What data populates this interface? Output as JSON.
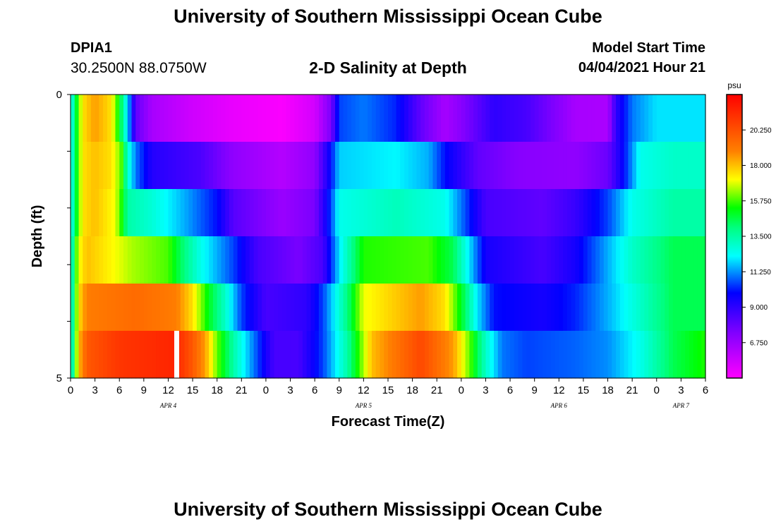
{
  "header": {
    "title": "University of Southern Mississippi Ocean Cube",
    "station_id": "DPIA1",
    "station_coords": "30.2500N  88.0750W",
    "model_start_label": "Model Start Time",
    "model_start_value": "04/04/2021 Hour 21"
  },
  "footer": {
    "title": "University of Southern Mississippi Ocean Cube"
  },
  "chart_data": {
    "type": "heatmap",
    "title": "2-D Salinity at Depth",
    "xlabel": "Forecast Time(Z)",
    "ylabel": "Depth (ft)",
    "x_tick_labels": [
      "0",
      "3",
      "6",
      "9",
      "12",
      "15",
      "18",
      "21",
      "0",
      "3",
      "6",
      "9",
      "12",
      "15",
      "18",
      "21",
      "0",
      "3",
      "6",
      "9",
      "12",
      "15",
      "18",
      "21",
      "0",
      "3",
      "6"
    ],
    "x_hours": [
      0,
      78
    ],
    "date_labels": [
      {
        "label": "APR 4",
        "hour": 12
      },
      {
        "label": "APR 5",
        "hour": 36
      },
      {
        "label": "APR 6",
        "hour": 60
      },
      {
        "label": "APR 7",
        "hour": 75
      }
    ],
    "y_tick_labels": [
      "0",
      "5"
    ],
    "ylim": [
      0,
      5
    ],
    "colorbar": {
      "unit": "psu",
      "min": 4.5,
      "max": 22.5,
      "tick_values": [
        20.25,
        18.0,
        15.75,
        13.5,
        11.25,
        9.0,
        6.75
      ],
      "tick_labels": [
        "20.250",
        "18.000",
        "15.750",
        "13.500",
        "11.250",
        "9.000",
        "6.750"
      ]
    },
    "rows": [
      {
        "depth_layer": 1,
        "keypoints": [
          [
            0,
            12
          ],
          [
            0.5,
            14
          ],
          [
            1,
            16
          ],
          [
            1.5,
            17.5
          ],
          [
            3,
            18.5
          ],
          [
            5,
            17.5
          ],
          [
            6,
            15
          ],
          [
            7,
            12
          ],
          [
            8,
            8
          ],
          [
            10,
            6.5
          ],
          [
            15,
            5.6
          ],
          [
            20,
            5
          ],
          [
            26,
            4.6
          ],
          [
            30,
            5.5
          ],
          [
            32,
            7.5
          ],
          [
            33,
            10.5
          ],
          [
            36,
            11
          ],
          [
            40,
            10.2
          ],
          [
            43,
            8
          ],
          [
            46,
            6.5
          ],
          [
            48,
            7.2
          ],
          [
            52,
            9
          ],
          [
            56,
            8.5
          ],
          [
            62,
            6.5
          ],
          [
            66,
            6.4
          ],
          [
            67,
            9
          ],
          [
            69,
            11
          ],
          [
            72,
            12
          ],
          [
            78,
            12
          ]
        ]
      },
      {
        "depth_layer": 2,
        "keypoints": [
          [
            0,
            12
          ],
          [
            0.5,
            14
          ],
          [
            1,
            16
          ],
          [
            1.5,
            17.5
          ],
          [
            3,
            18
          ],
          [
            5,
            17.5
          ],
          [
            6.2,
            16
          ],
          [
            7,
            13
          ],
          [
            8,
            11
          ],
          [
            10,
            9.2
          ],
          [
            16,
            8.4
          ],
          [
            20,
            7
          ],
          [
            26,
            6.2
          ],
          [
            30,
            7
          ],
          [
            32,
            10
          ],
          [
            33,
            11.8
          ],
          [
            40,
            12.2
          ],
          [
            44,
            11.5
          ],
          [
            46,
            10
          ],
          [
            50,
            8
          ],
          [
            55,
            7.2
          ],
          [
            62,
            7
          ],
          [
            66,
            7.8
          ],
          [
            68,
            10
          ],
          [
            70,
            12.5
          ],
          [
            74,
            13
          ],
          [
            78,
            13
          ]
        ]
      },
      {
        "depth_layer": 3,
        "keypoints": [
          [
            0,
            12
          ],
          [
            0.5,
            14
          ],
          [
            1,
            16
          ],
          [
            1.5,
            17.5
          ],
          [
            3,
            18
          ],
          [
            5.5,
            17
          ],
          [
            6.5,
            15
          ],
          [
            7,
            13.5
          ],
          [
            10,
            12.8
          ],
          [
            14,
            11.5
          ],
          [
            18,
            10
          ],
          [
            20,
            8.2
          ],
          [
            26,
            6.8
          ],
          [
            30,
            7.5
          ],
          [
            32,
            10.5
          ],
          [
            33,
            12.5
          ],
          [
            40,
            13.2
          ],
          [
            46,
            12.5
          ],
          [
            48,
            11
          ],
          [
            51,
            8.5
          ],
          [
            58,
            8
          ],
          [
            62,
            8.8
          ],
          [
            66,
            10.5
          ],
          [
            69,
            12.5
          ],
          [
            74,
            13.5
          ],
          [
            78,
            13.5
          ]
        ]
      },
      {
        "depth_layer": 4,
        "keypoints": [
          [
            0,
            12
          ],
          [
            0.5,
            15
          ],
          [
            1,
            17
          ],
          [
            2,
            18
          ],
          [
            5,
            17.2
          ],
          [
            7.5,
            16.5
          ],
          [
            12,
            15.8
          ],
          [
            14,
            14
          ],
          [
            16,
            12.5
          ],
          [
            20,
            10.5
          ],
          [
            23,
            8.5
          ],
          [
            28,
            7.5
          ],
          [
            31,
            8.5
          ],
          [
            33,
            12
          ],
          [
            36,
            15.5
          ],
          [
            44,
            15.8
          ],
          [
            47,
            14.5
          ],
          [
            49,
            12
          ],
          [
            51,
            9.5
          ],
          [
            58,
            8.5
          ],
          [
            62,
            9.5
          ],
          [
            66,
            11.5
          ],
          [
            69,
            13
          ],
          [
            74,
            14.5
          ],
          [
            78,
            14.5
          ]
        ]
      },
      {
        "depth_layer": 5,
        "keypoints": [
          [
            0,
            12
          ],
          [
            0.5,
            15
          ],
          [
            1,
            17.5
          ],
          [
            2,
            19
          ],
          [
            8,
            19.5
          ],
          [
            13,
            19
          ],
          [
            15,
            17.5
          ],
          [
            17,
            15
          ],
          [
            19,
            13
          ],
          [
            21,
            10.5
          ],
          [
            24,
            8.5
          ],
          [
            29,
            9
          ],
          [
            31,
            10.5
          ],
          [
            34,
            14
          ],
          [
            36,
            17
          ],
          [
            43,
            18.5
          ],
          [
            46,
            17.5
          ],
          [
            48,
            15
          ],
          [
            50,
            12
          ],
          [
            52,
            10
          ],
          [
            58,
            9.5
          ],
          [
            62,
            10.2
          ],
          [
            66,
            11.5
          ],
          [
            70,
            13
          ],
          [
            74,
            14.5
          ],
          [
            78,
            14.5
          ]
        ]
      },
      {
        "depth_layer": 6,
        "keypoints": [
          [
            0,
            12
          ],
          [
            0.5,
            15
          ],
          [
            1,
            18
          ],
          [
            2,
            20
          ],
          [
            6,
            21
          ],
          [
            13,
            21.5
          ],
          [
            15,
            20
          ],
          [
            16.5,
            18.5
          ],
          [
            18,
            16
          ],
          [
            20,
            13.5
          ],
          [
            23,
            10.5
          ],
          [
            25,
            8.5
          ],
          [
            28,
            8.5
          ],
          [
            31,
            10.5
          ],
          [
            34,
            13.5
          ],
          [
            37,
            18
          ],
          [
            43,
            20.5
          ],
          [
            47,
            18.5
          ],
          [
            49,
            16
          ],
          [
            51,
            13
          ],
          [
            53,
            11
          ],
          [
            56,
            10.5
          ],
          [
            62,
            10.8
          ],
          [
            66,
            11.2
          ],
          [
            70,
            12.5
          ],
          [
            74,
            14.5
          ],
          [
            78,
            15.5
          ]
        ]
      }
    ],
    "annotation": {
      "type": "missing-data-gap",
      "hour": 13,
      "depth_layer": 6
    }
  }
}
